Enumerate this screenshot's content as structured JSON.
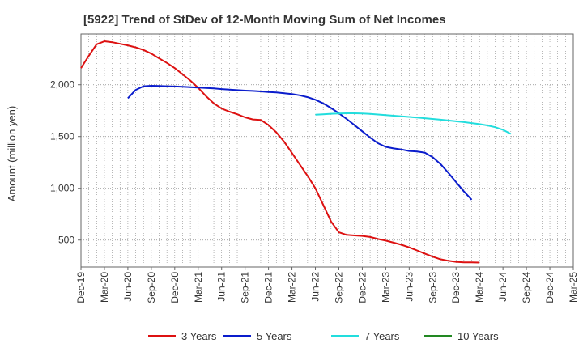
{
  "chart_data": {
    "type": "line",
    "title": "[5922]  Trend of StDev of 12-Month Moving Sum of Net Incomes",
    "xlabel": "",
    "ylabel": "Amount (million yen)",
    "x_tick_labels": [
      "Dec-19",
      "Mar-20",
      "Jun-20",
      "Sep-20",
      "Dec-20",
      "Mar-21",
      "Jun-21",
      "Sep-21",
      "Dec-21",
      "Mar-22",
      "Jun-22",
      "Sep-22",
      "Dec-22",
      "Mar-23",
      "Jun-23",
      "Sep-23",
      "Dec-23",
      "Mar-24",
      "Jun-24",
      "Sep-24",
      "Dec-24",
      "Mar-25"
    ],
    "y_ticks": [
      500,
      1000,
      1500,
      2000
    ],
    "y_tick_labels": [
      "500",
      "1,000",
      "1,500",
      "2,000"
    ],
    "ylim": [
      240,
      2490
    ],
    "grid": true,
    "legend_position": "bottom",
    "series": [
      {
        "name": "3 Years",
        "color": "#dd1111",
        "start_index": 0,
        "values": [
          2160,
          2280,
          2390,
          2420,
          2410,
          2395,
          2380,
          2360,
          2335,
          2300,
          2255,
          2210,
          2160,
          2100,
          2040,
          1970,
          1890,
          1820,
          1770,
          1740,
          1715,
          1685,
          1665,
          1660,
          1610,
          1540,
          1450,
          1340,
          1230,
          1120,
          1000,
          840,
          680,
          575,
          550,
          545,
          540,
          530,
          510,
          495,
          475,
          455,
          430,
          400,
          370,
          340,
          315,
          300,
          290,
          285,
          285,
          283
        ]
      },
      {
        "name": "5 Years",
        "color": "#0a1ccc",
        "start_index": 6,
        "values": [
          1870,
          1950,
          1985,
          1990,
          1988,
          1985,
          1983,
          1980,
          1977,
          1973,
          1969,
          1964,
          1958,
          1953,
          1948,
          1943,
          1940,
          1935,
          1930,
          1925,
          1918,
          1910,
          1898,
          1880,
          1855,
          1820,
          1775,
          1725,
          1670,
          1610,
          1550,
          1490,
          1435,
          1400,
          1385,
          1375,
          1360,
          1355,
          1345,
          1300,
          1235,
          1150,
          1060,
          970,
          890
        ]
      },
      {
        "name": "7 Years",
        "color": "#22dddd",
        "start_index": 30,
        "values": [
          1710,
          1715,
          1720,
          1722,
          1724,
          1724,
          1722,
          1718,
          1713,
          1707,
          1701,
          1695,
          1689,
          1683,
          1677,
          1670,
          1663,
          1655,
          1647,
          1639,
          1630,
          1620,
          1607,
          1590,
          1565,
          1525
        ]
      },
      {
        "name": "10 Years",
        "color": "#228822",
        "start_index": 0,
        "values": []
      }
    ]
  }
}
